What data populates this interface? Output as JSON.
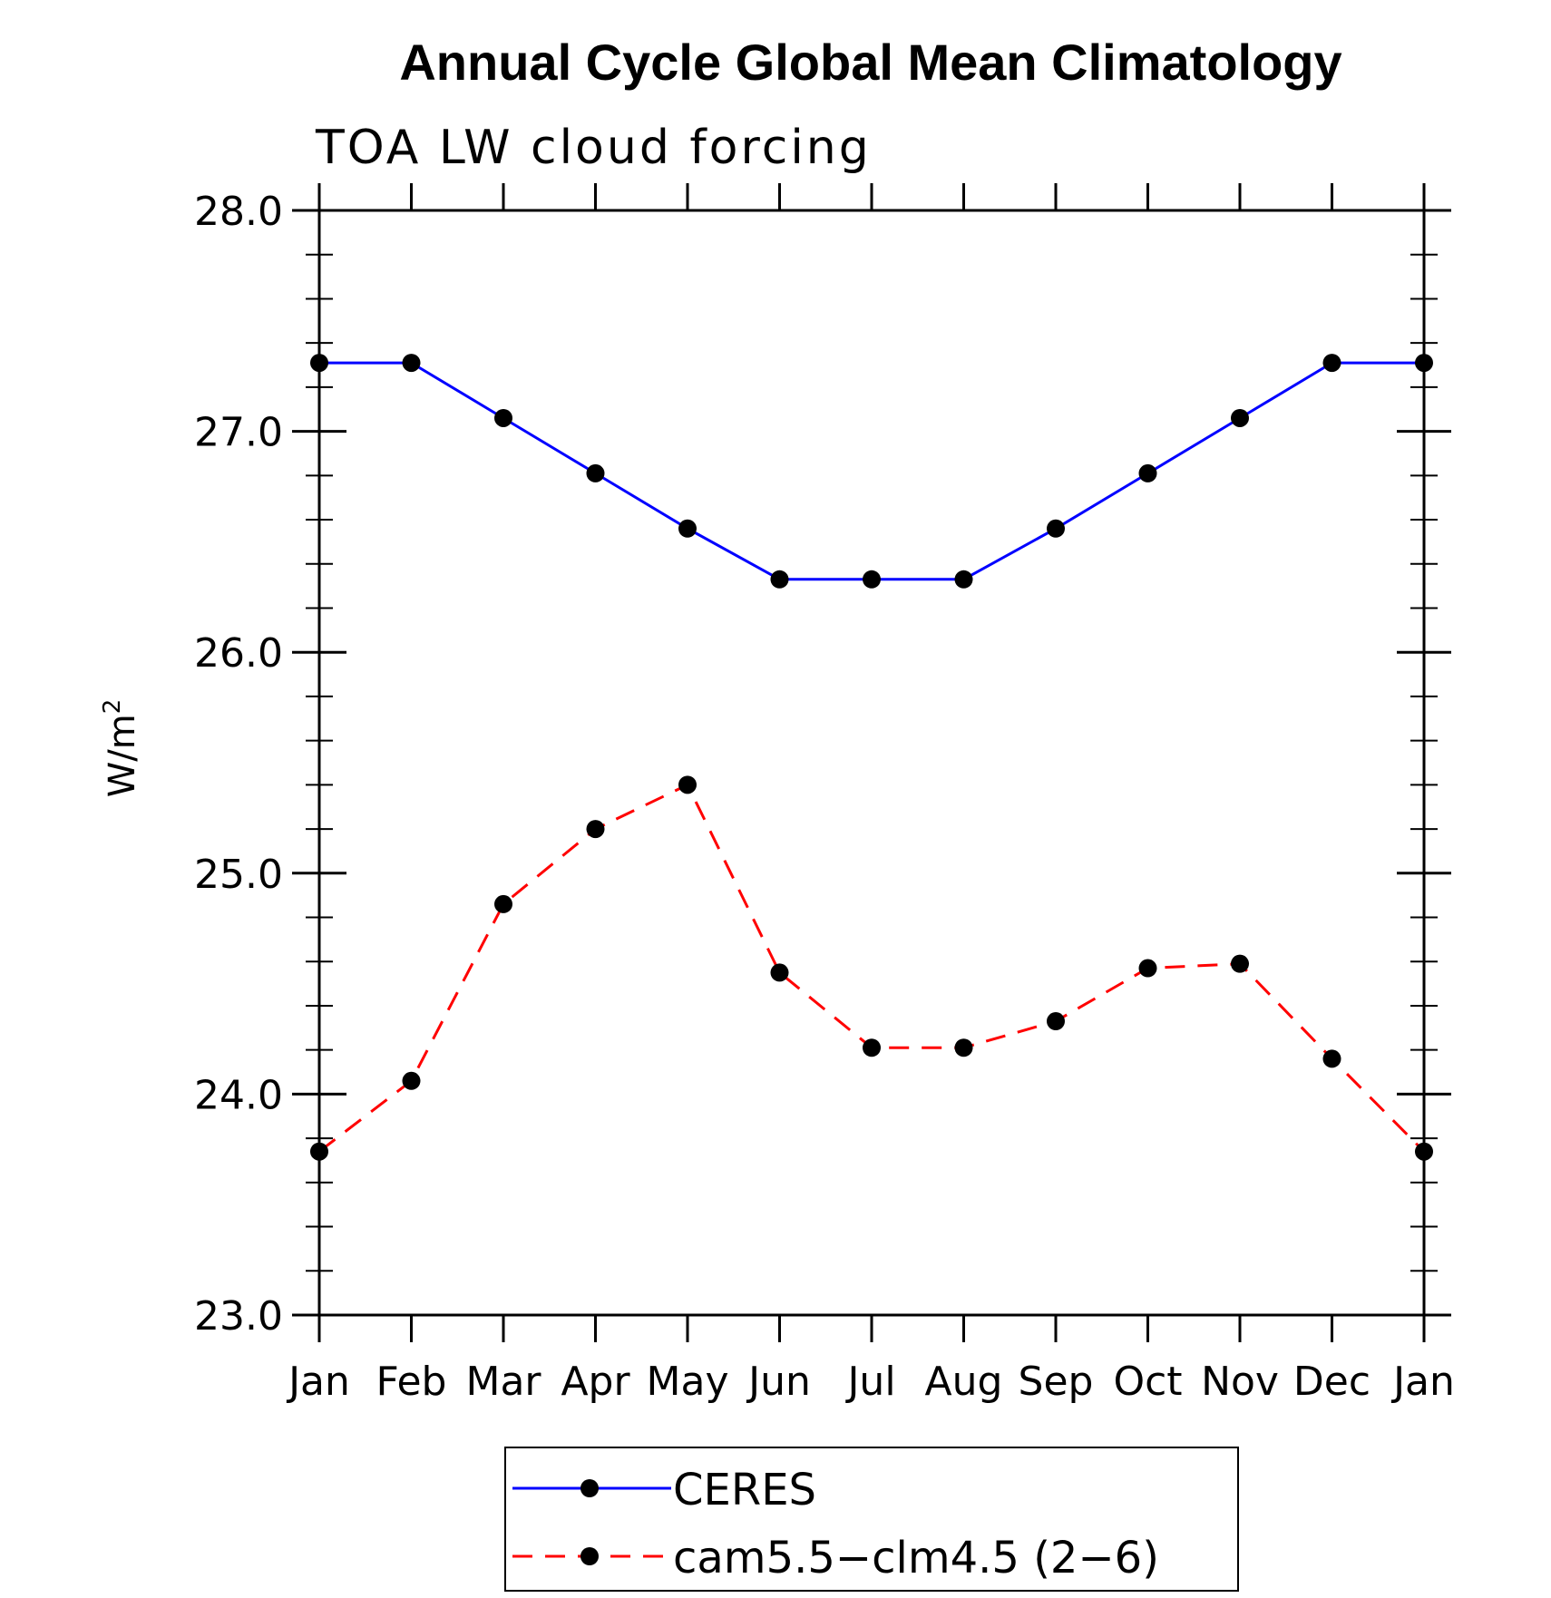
{
  "chart_data": {
    "type": "line",
    "title": "Annual Cycle Global Mean Climatology",
    "subtitle": "TOA LW cloud forcing",
    "ylabel_base": "W/m",
    "ylabel_sup": "2",
    "categories": [
      "Jan",
      "Feb",
      "Mar",
      "Apr",
      "May",
      "Jun",
      "Jul",
      "Aug",
      "Sep",
      "Oct",
      "Nov",
      "Dec",
      "Jan"
    ],
    "ylim": [
      23.0,
      28.0
    ],
    "yticks": [
      "23.0",
      "24.0",
      "25.0",
      "26.0",
      "27.0",
      "28.0"
    ],
    "series": [
      {
        "name": "CERES",
        "color": "#0000ff",
        "dash": "solid",
        "values": [
          27.31,
          27.31,
          27.06,
          26.81,
          26.56,
          26.33,
          26.33,
          26.33,
          26.56,
          26.81,
          27.06,
          27.31,
          27.31
        ]
      },
      {
        "name": "cam5.5−clm4.5 (2−6)",
        "color": "#ff0000",
        "dash": "dashed",
        "values": [
          23.74,
          24.06,
          24.86,
          25.2,
          25.4,
          24.55,
          24.21,
          24.21,
          24.33,
          24.57,
          24.59,
          24.16,
          23.74
        ]
      }
    ]
  }
}
